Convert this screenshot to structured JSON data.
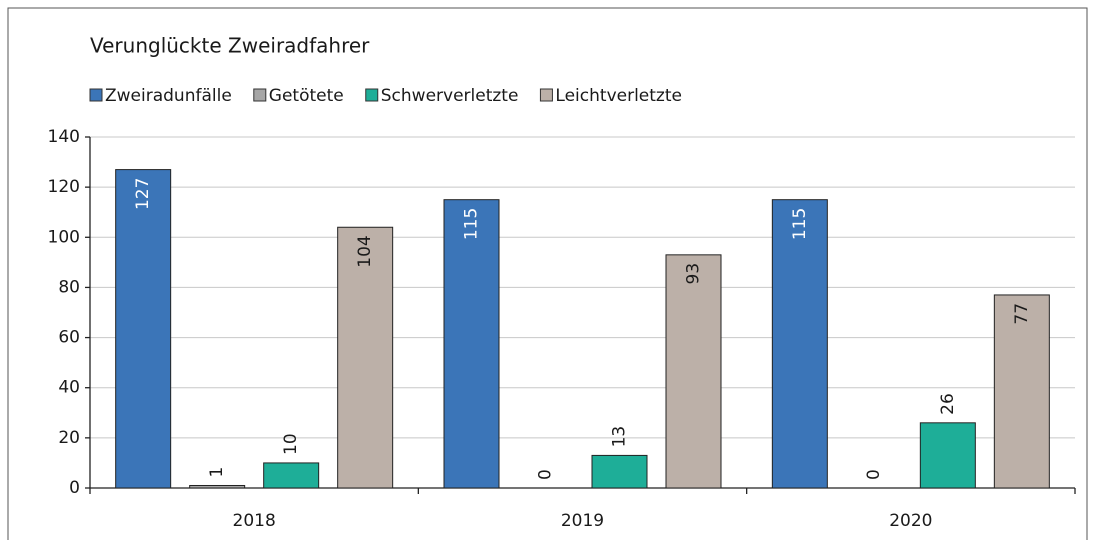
{
  "chart_data": {
    "type": "bar",
    "title": "Verunglückte Zweiradfahrer",
    "categories": [
      "2018",
      "2019",
      "2020"
    ],
    "series": [
      {
        "name": "Zweiradunfälle",
        "color": "#3b75b8",
        "values": [
          127,
          115,
          115
        ]
      },
      {
        "name": "Getötete",
        "color": "#a6a6a6",
        "values": [
          1,
          0,
          0
        ]
      },
      {
        "name": "Schwerverletzte",
        "color": "#1eae98",
        "values": [
          10,
          13,
          26
        ]
      },
      {
        "name": "Leichtverletzte",
        "color": "#bcb0a8",
        "values": [
          104,
          93,
          77
        ]
      }
    ],
    "ylim": [
      0,
      140
    ],
    "yticks": [
      0,
      20,
      40,
      60,
      80,
      100,
      120,
      140
    ],
    "grid": true,
    "legend": "top"
  }
}
